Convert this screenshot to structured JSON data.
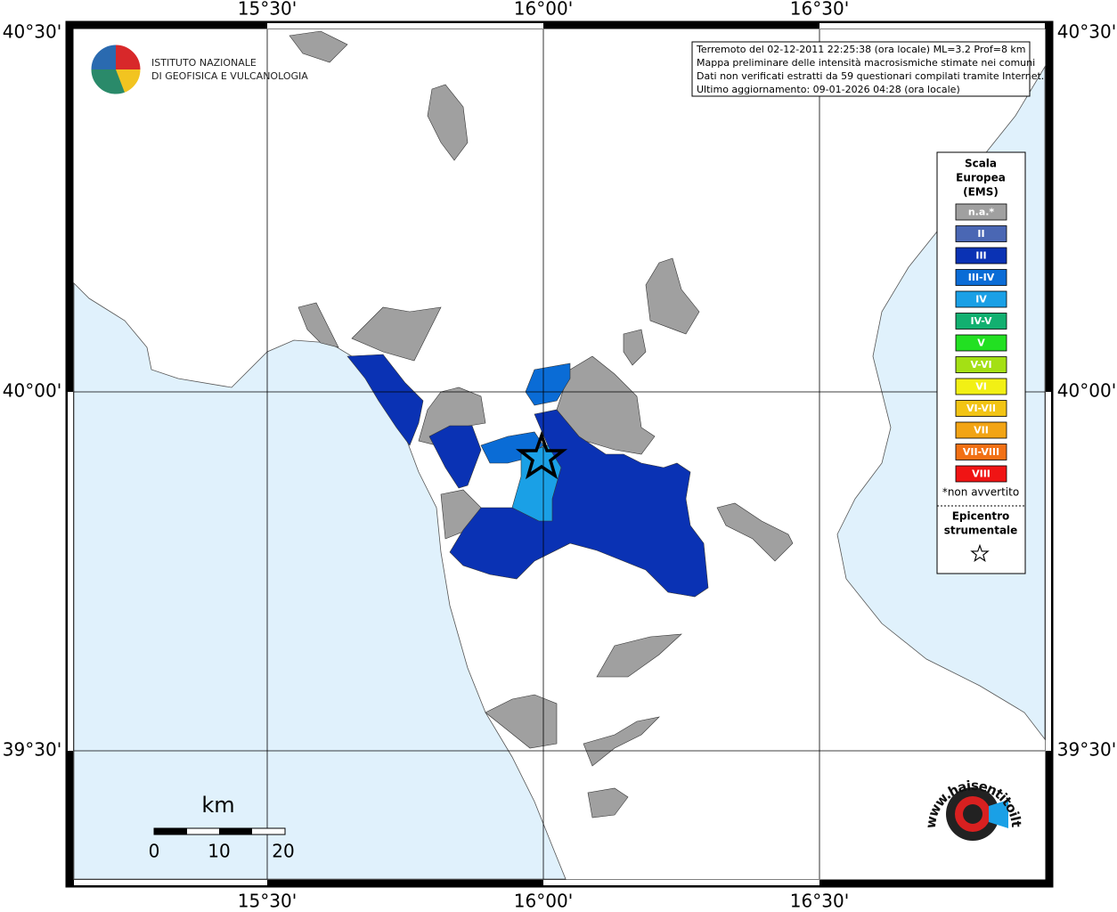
{
  "axes": {
    "top": [
      "15°30'",
      "16°00'",
      "16°30'"
    ],
    "bottom": [
      "15°30'",
      "16°00'",
      "16°30'"
    ],
    "left": [
      "40°30'",
      "40°00'",
      "39°30'"
    ],
    "right": [
      "40°30'",
      "40°00'",
      "39°30'"
    ]
  },
  "logo": {
    "line1": "ISTITUTO NAZIONALE",
    "line2": "DI GEOFISICA E VULCANOLOGIA"
  },
  "info": {
    "lines": [
      "Terremoto del 02-12-2011 22:25:38 (ora locale) ML=3.2 Prof=8 km",
      "Mappa preliminare delle intensità macrosismiche stimate nei comuni",
      "Dati non verificati estratti da 59 questionari compilati tramite Internet.",
      "Ultimo aggiornamento: 09-01-2026 04:28 (ora locale)"
    ]
  },
  "legend": {
    "title": [
      "Scala",
      "Europea",
      "(EMS)"
    ],
    "items": [
      {
        "label": "n.a.*",
        "color": "#a0a0a0"
      },
      {
        "label": "II",
        "color": "#4a67b4"
      },
      {
        "label": "III",
        "color": "#0a32b4"
      },
      {
        "label": "III-IV",
        "color": "#0a6cd6"
      },
      {
        "label": "IV",
        "color": "#1aa0e6"
      },
      {
        "label": "IV-V",
        "color": "#12b070"
      },
      {
        "label": "V",
        "color": "#22e022"
      },
      {
        "label": "V-VI",
        "color": "#a4e014"
      },
      {
        "label": "VI",
        "color": "#f2f014"
      },
      {
        "label": "VI-VII",
        "color": "#f2c414"
      },
      {
        "label": "VII",
        "color": "#f2a414"
      },
      {
        "label": "VII-VIII",
        "color": "#f27014"
      },
      {
        "label": "VIII",
        "color": "#f01414"
      }
    ],
    "note": "*non avvertito",
    "epicenter": [
      "Epicentro",
      "strumentale"
    ]
  },
  "scale": {
    "unit": "km",
    "ticks": [
      "0",
      "10",
      "20"
    ]
  },
  "site": "www.haisentitoilterremoto.it"
}
